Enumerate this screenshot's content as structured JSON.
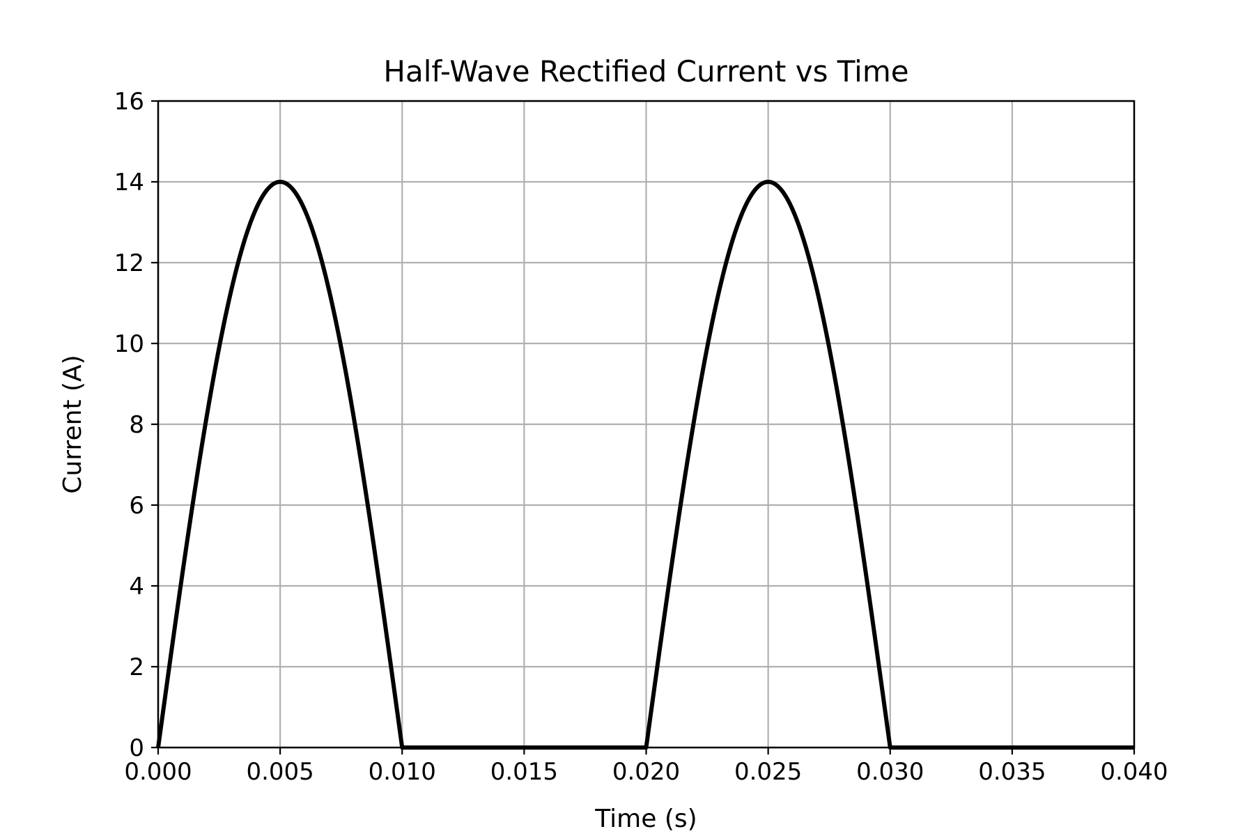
{
  "chart_data": {
    "type": "line",
    "title": "Half-Wave Rectified Current vs Time",
    "xlabel": "Time (s)",
    "ylabel": "Current (A)",
    "xlim": [
      0.0,
      0.04
    ],
    "ylim": [
      0,
      16
    ],
    "x_ticks": [
      "0.000",
      "0.005",
      "0.010",
      "0.015",
      "0.020",
      "0.025",
      "0.030",
      "0.035",
      "0.040"
    ],
    "y_ticks": [
      "0",
      "2",
      "4",
      "6",
      "8",
      "10",
      "12",
      "14",
      "16"
    ],
    "grid": true,
    "legend": "none",
    "series": [
      {
        "color": "#000000",
        "x": [
          0.0,
          0.001,
          0.002,
          0.003,
          0.004,
          0.005,
          0.006,
          0.007,
          0.008,
          0.009,
          0.01,
          0.015,
          0.02,
          0.021,
          0.022,
          0.023,
          0.024,
          0.025,
          0.026,
          0.027,
          0.028,
          0.029,
          0.03,
          0.035,
          0.04
        ],
        "y": [
          0.0,
          4.33,
          8.23,
          11.33,
          13.31,
          14.0,
          13.31,
          11.33,
          8.23,
          4.33,
          0.0,
          0.0,
          0.0,
          4.33,
          8.23,
          11.33,
          13.31,
          14.0,
          13.31,
          11.33,
          8.23,
          4.33,
          0.0,
          0.0,
          0.0
        ]
      }
    ]
  }
}
